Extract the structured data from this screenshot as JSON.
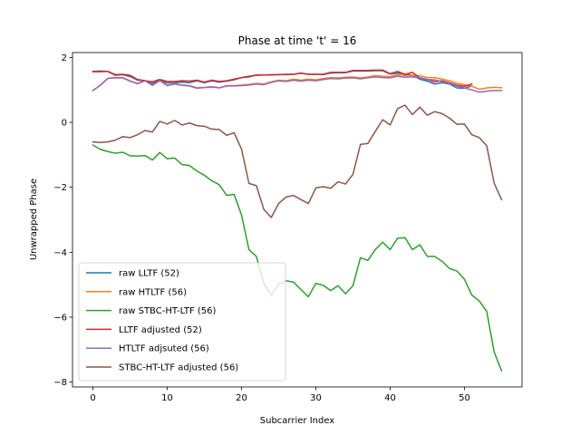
{
  "chart_data": {
    "type": "line",
    "title": "Phase at time 't' = 16",
    "xlabel": "Subcarrier Index",
    "ylabel": "Unwrapped Phase",
    "xlim": [
      -2.75,
      57.75
    ],
    "ylim": [
      -8.15,
      2.15
    ],
    "xticks": [
      0,
      10,
      20,
      30,
      40,
      50
    ],
    "yticks": [
      -8,
      -6,
      -4,
      -2,
      0,
      2
    ],
    "grid": false,
    "legend_position": "lower-left",
    "series": [
      {
        "name": "raw LLTF (52)",
        "color": "#1f77b4",
        "values": [
          1.57,
          1.58,
          1.57,
          1.45,
          1.47,
          1.41,
          1.3,
          1.29,
          1.2,
          1.3,
          1.21,
          1.22,
          1.24,
          1.22,
          1.28,
          1.22,
          1.28,
          1.24,
          1.27,
          1.31,
          1.38,
          1.42,
          1.45,
          1.46,
          1.46,
          1.47,
          1.47,
          1.48,
          1.51,
          1.48,
          1.48,
          1.47,
          1.52,
          1.53,
          1.53,
          1.58,
          1.58,
          1.58,
          1.59,
          1.59,
          1.49,
          1.52,
          1.49,
          1.45,
          1.33,
          1.27,
          1.18,
          1.22,
          1.18,
          1.06,
          1.05,
          1.12
        ]
      },
      {
        "name": "raw HTLTF (56)",
        "color": "#ff7f0e",
        "values": [
          0.98,
          1.15,
          1.36,
          1.38,
          1.38,
          1.28,
          1.2,
          1.29,
          1.15,
          1.29,
          1.14,
          1.19,
          1.15,
          1.13,
          1.07,
          1.08,
          1.1,
          1.07,
          1.13,
          1.13,
          1.15,
          1.17,
          1.2,
          1.18,
          1.25,
          1.3,
          1.28,
          1.33,
          1.3,
          1.33,
          1.31,
          1.35,
          1.38,
          1.37,
          1.39,
          1.4,
          1.37,
          1.4,
          1.44,
          1.42,
          1.41,
          1.47,
          1.44,
          1.45,
          1.44,
          1.38,
          1.38,
          1.33,
          1.28,
          1.21,
          1.16,
          1.11,
          1.02,
          1.06,
          1.08,
          1.07
        ]
      },
      {
        "name": "raw STBC-HT-LTF (56)",
        "color": "#2ca02c",
        "values": [
          -0.7,
          -0.83,
          -0.9,
          -0.95,
          -0.92,
          -1.03,
          -1.04,
          -1.02,
          -1.16,
          -0.93,
          -1.12,
          -1.1,
          -1.3,
          -1.33,
          -1.5,
          -1.63,
          -1.8,
          -1.92,
          -2.25,
          -2.22,
          -2.85,
          -3.92,
          -4.13,
          -4.97,
          -5.32,
          -4.98,
          -4.88,
          -4.92,
          -5.15,
          -5.37,
          -4.96,
          -5.02,
          -5.18,
          -5.03,
          -5.28,
          -5.03,
          -4.17,
          -4.25,
          -3.92,
          -3.69,
          -3.92,
          -3.57,
          -3.55,
          -3.92,
          -3.77,
          -4.13,
          -4.13,
          -4.28,
          -4.5,
          -4.58,
          -4.83,
          -5.32,
          -5.5,
          -5.82,
          -7.07,
          -7.65
        ]
      },
      {
        "name": "LLTF adjusted (52)",
        "color": "#d62728",
        "values": [
          1.56,
          1.56,
          1.57,
          1.47,
          1.48,
          1.45,
          1.32,
          1.28,
          1.25,
          1.32,
          1.26,
          1.26,
          1.28,
          1.27,
          1.3,
          1.24,
          1.3,
          1.26,
          1.28,
          1.33,
          1.38,
          1.4,
          1.46,
          1.46,
          1.47,
          1.47,
          1.48,
          1.48,
          1.52,
          1.48,
          1.48,
          1.48,
          1.54,
          1.54,
          1.54,
          1.6,
          1.6,
          1.6,
          1.61,
          1.61,
          1.5,
          1.57,
          1.48,
          1.54,
          1.37,
          1.32,
          1.25,
          1.28,
          1.22,
          1.15,
          1.11,
          1.18
        ]
      },
      {
        "name": "HTLTF adjsuted (56)",
        "color": "#9467bd",
        "values": [
          0.98,
          1.14,
          1.35,
          1.37,
          1.37,
          1.27,
          1.19,
          1.28,
          1.14,
          1.28,
          1.13,
          1.18,
          1.14,
          1.12,
          1.05,
          1.07,
          1.09,
          1.06,
          1.12,
          1.12,
          1.13,
          1.15,
          1.18,
          1.16,
          1.23,
          1.28,
          1.26,
          1.3,
          1.27,
          1.3,
          1.28,
          1.32,
          1.35,
          1.34,
          1.36,
          1.37,
          1.34,
          1.37,
          1.4,
          1.38,
          1.37,
          1.42,
          1.39,
          1.4,
          1.38,
          1.32,
          1.31,
          1.25,
          1.2,
          1.12,
          1.06,
          1.0,
          0.93,
          0.96,
          0.98,
          0.98
        ]
      },
      {
        "name": "STBC-HT-LTF adjusted (56)",
        "color": "#8c564b",
        "values": [
          -0.6,
          -0.62,
          -0.6,
          -0.55,
          -0.44,
          -0.47,
          -0.38,
          -0.25,
          -0.3,
          0.03,
          -0.05,
          0.06,
          -0.08,
          -0.02,
          -0.1,
          -0.12,
          -0.21,
          -0.22,
          -0.4,
          -0.32,
          -0.82,
          -1.88,
          -1.95,
          -2.68,
          -2.93,
          -2.5,
          -2.3,
          -2.25,
          -2.38,
          -2.5,
          -2.02,
          -1.98,
          -2.03,
          -1.83,
          -1.9,
          -1.6,
          -0.68,
          -0.65,
          -0.28,
          0.08,
          -0.08,
          0.42,
          0.53,
          0.24,
          0.47,
          0.22,
          0.33,
          0.27,
          0.13,
          -0.06,
          -0.05,
          -0.38,
          -0.47,
          -0.72,
          -1.87,
          -2.38
        ]
      }
    ]
  }
}
